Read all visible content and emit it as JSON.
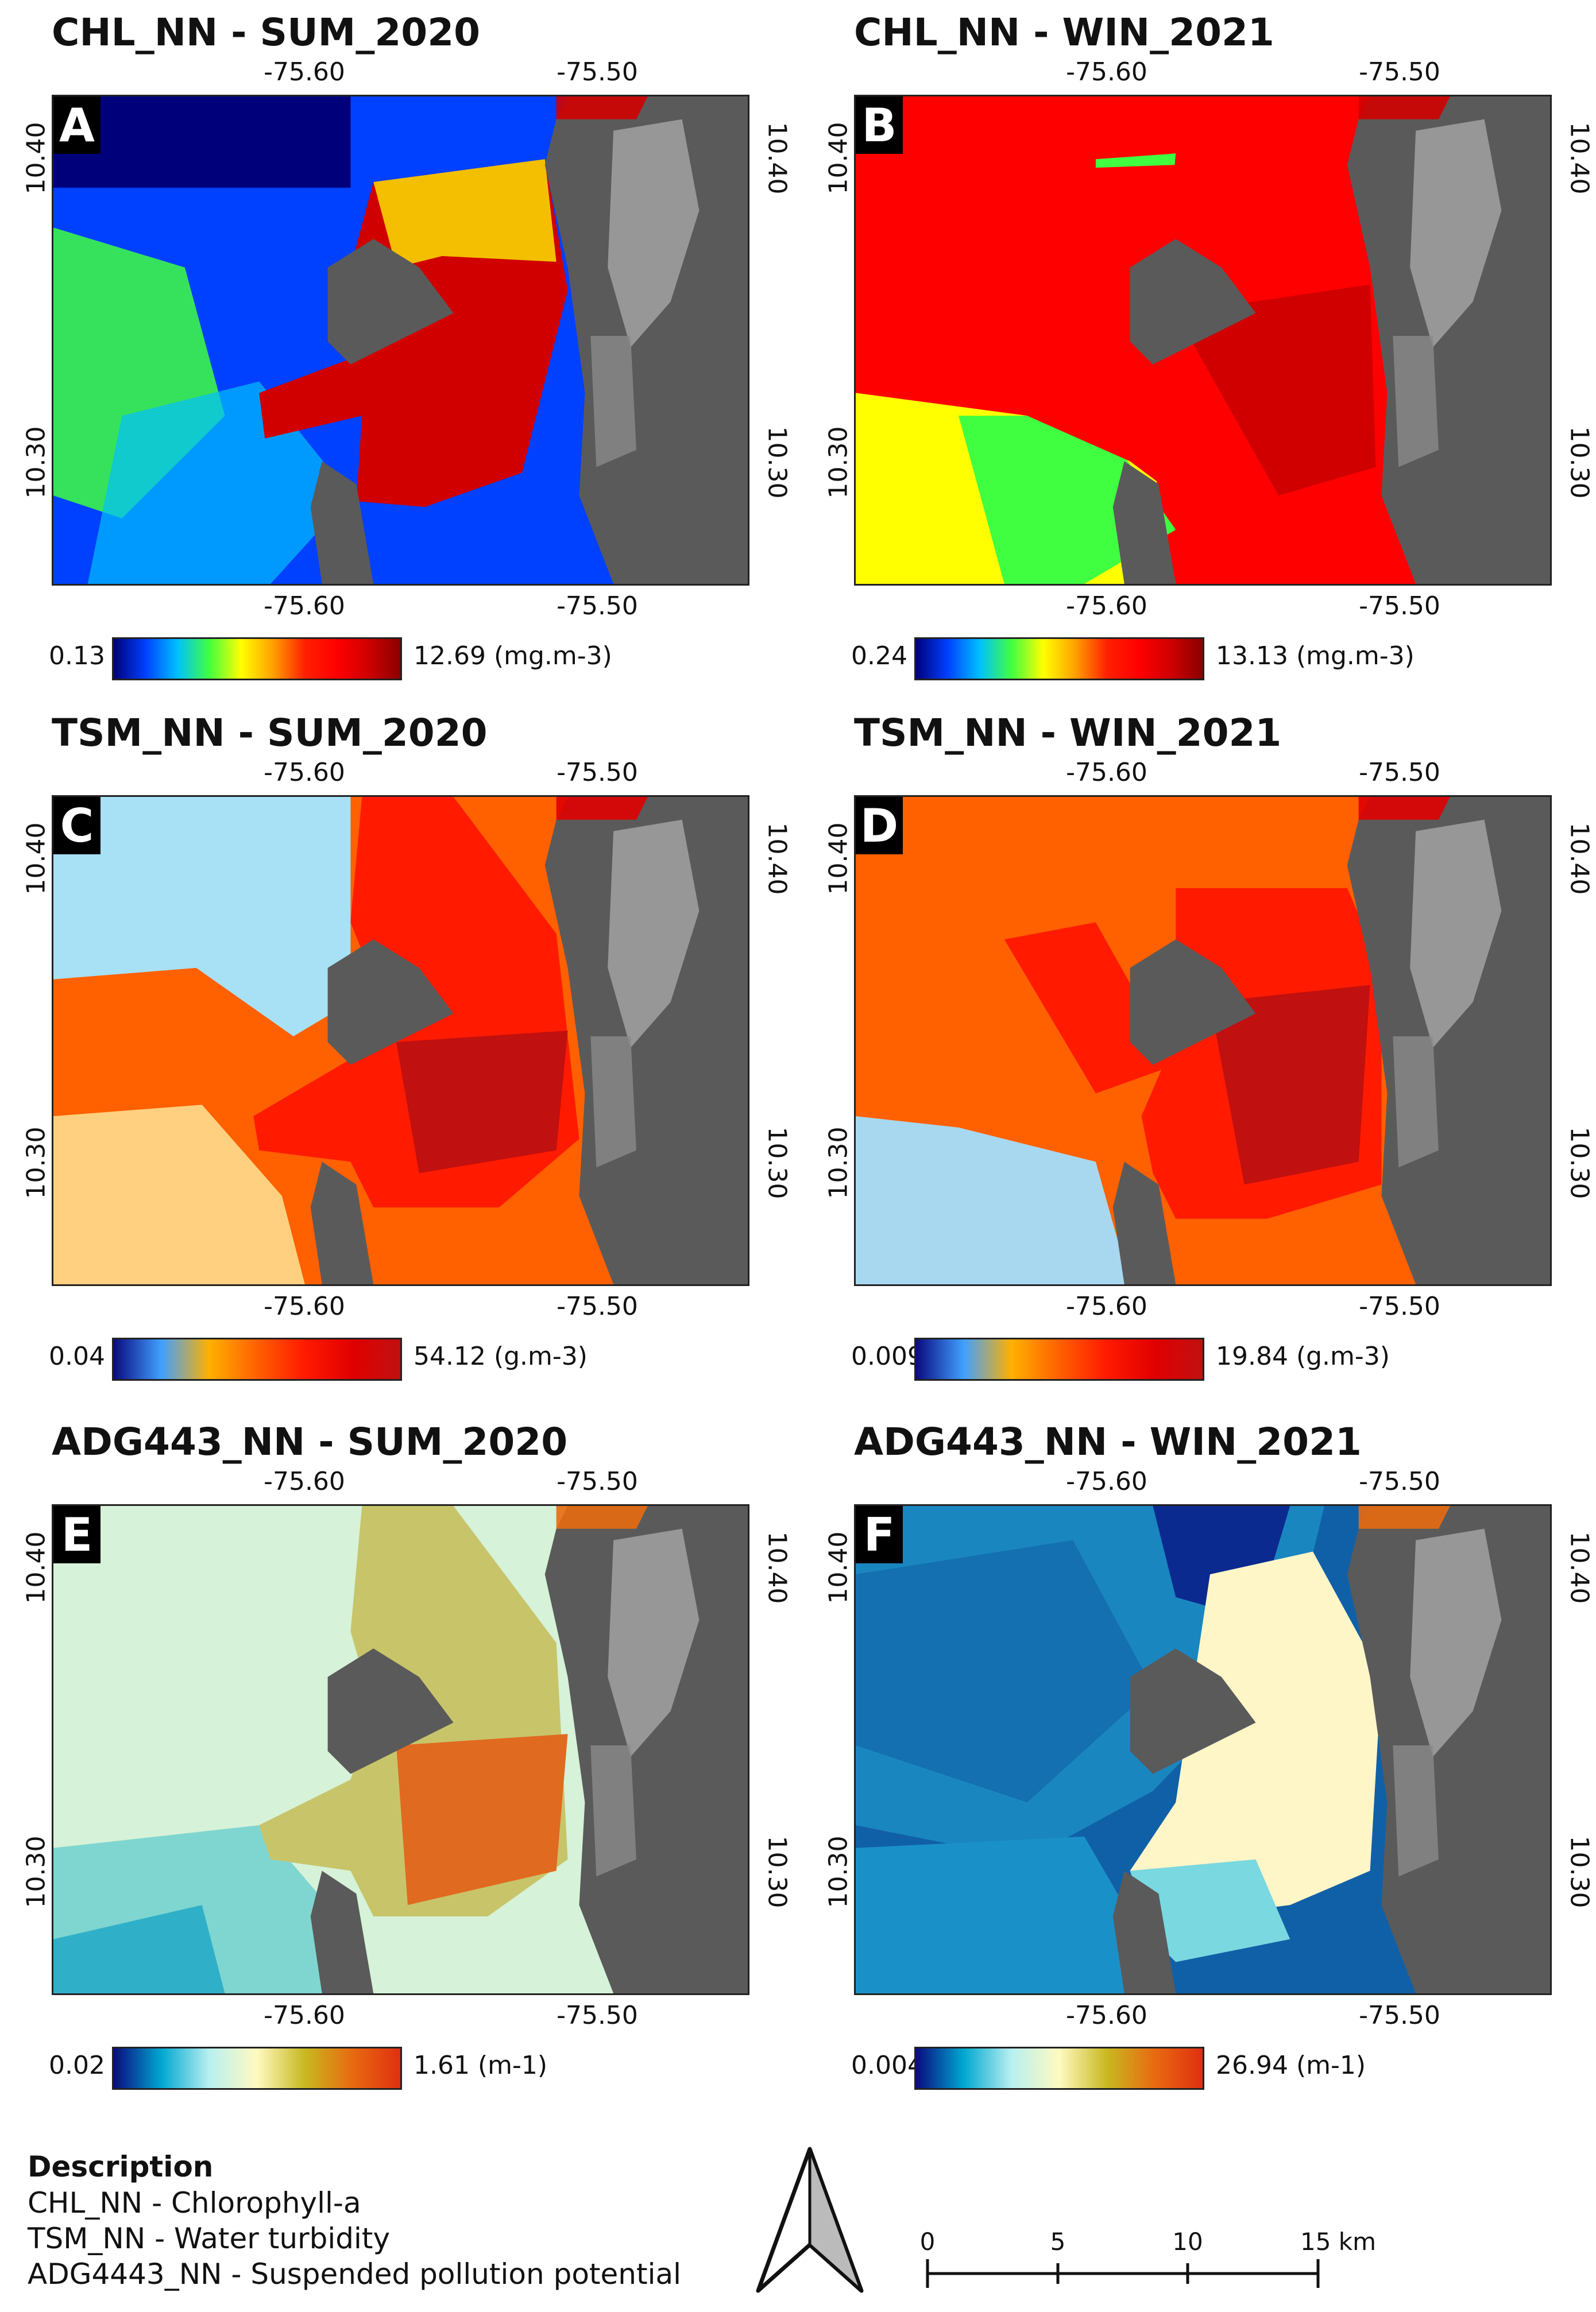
{
  "panels": [
    {
      "id": "A",
      "title": "CHL_NN - SUM_2020",
      "colorbar_min": "0.13",
      "colorbar_max": "12.69 (mg.m-3)",
      "cb": "chl"
    },
    {
      "id": "B",
      "title": "CHL_NN - WIN_2021",
      "colorbar_min": "0.24",
      "colorbar_max": "13.13 (mg.m-3)",
      "cb": "chl"
    },
    {
      "id": "C",
      "title": "TSM_NN - SUM_2020",
      "colorbar_min": "0.04",
      "colorbar_max": "54.12 (g.m-3)",
      "cb": "tsm"
    },
    {
      "id": "D",
      "title": "TSM_NN - WIN_2021",
      "colorbar_min": "0.009",
      "colorbar_max": "19.84 (g.m-3)",
      "cb": "tsm"
    },
    {
      "id": "E",
      "title": "ADG443_NN - SUM_2020",
      "colorbar_min": "0.02",
      "colorbar_max": "1.61 (m-1)",
      "cb": "adg"
    },
    {
      "id": "F",
      "title": "ADG443_NN - WIN_2021",
      "colorbar_min": "0.004",
      "colorbar_max": "26.94 (m-1)",
      "cb": "adg"
    }
  ],
  "axes": {
    "lon_ticks": [
      "-75.60",
      "-75.50"
    ],
    "lat_ticks": [
      "10.40",
      "10.30"
    ]
  },
  "description": {
    "title": "Description",
    "lines": [
      "CHL_NN - Chlorophyll-a",
      "TSM_NN - Water turbidity",
      "ADG4443_NN - Suspended pollution potential"
    ]
  },
  "scale_bar": {
    "labels": [
      "0",
      "5",
      "10",
      "15 km"
    ]
  },
  "north_arrow": "north-arrow",
  "colormaps": {
    "chl": [
      "#00007a",
      "#0040ff",
      "#00c0ff",
      "#40ff40",
      "#ffff00",
      "#ffa000",
      "#ff2000",
      "#ff0000",
      "#d00000",
      "#8a0000"
    ],
    "tsm": [
      "#0a0a80",
      "#40a0ff",
      "#ffb000",
      "#ff6000",
      "#ff1a00",
      "#e00000",
      "#c01010"
    ],
    "adg": [
      "#0a0a80",
      "#00a8d0",
      "#b8f0f0",
      "#fffac0",
      "#c8b820",
      "#e86a10",
      "#e03010"
    ]
  }
}
